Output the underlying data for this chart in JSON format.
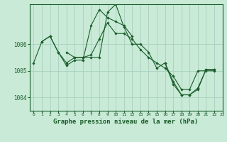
{
  "background_color": "#c8ead6",
  "grid_color": "#a8cfc0",
  "line_color": "#1a5c2a",
  "marker_color": "#1a5c2a",
  "title": "Graphe pression niveau de la mer (hPa)",
  "title_fontsize": 6.5,
  "xlim": [
    -0.5,
    23
  ],
  "ylim": [
    1003.5,
    1007.5
  ],
  "yticks": [
    1004,
    1005,
    1006
  ],
  "xticks": [
    0,
    1,
    2,
    3,
    4,
    5,
    6,
    7,
    8,
    9,
    10,
    11,
    12,
    13,
    14,
    15,
    16,
    17,
    18,
    19,
    20,
    21,
    22,
    23
  ],
  "series": [
    [
      1005.3,
      1006.1,
      1006.3,
      1005.7,
      1005.3,
      1005.5,
      1005.5,
      1005.6,
      1006.2,
      1006.8,
      1006.4,
      1006.4,
      1006.2,
      1005.8,
      1005.5,
      1005.3,
      1005.1,
      1004.8,
      1004.3,
      1004.3,
      1005.0,
      1005.0,
      1005.0,
      null
    ],
    [
      null,
      1006.1,
      1006.3,
      1005.7,
      1005.2,
      1005.4,
      1005.4,
      1006.7,
      1007.3,
      1007.0,
      1006.85,
      1006.7,
      1006.3,
      null,
      null,
      null,
      null,
      null,
      null,
      null,
      null,
      null,
      null,
      null
    ],
    [
      null,
      null,
      null,
      null,
      1005.7,
      1005.5,
      1005.5,
      1005.5,
      1005.5,
      1007.2,
      1007.5,
      1006.65,
      1006.0,
      1006.0,
      1005.7,
      1005.1,
      1005.3,
      1004.6,
      1004.1,
      1004.1,
      1004.3,
      1005.05,
      1005.05,
      null
    ],
    [
      null,
      null,
      null,
      null,
      null,
      null,
      null,
      null,
      null,
      null,
      null,
      null,
      null,
      null,
      null,
      null,
      1005.3,
      1004.5,
      1004.1,
      1004.1,
      1004.35,
      1005.05,
      1005.05,
      null
    ]
  ]
}
